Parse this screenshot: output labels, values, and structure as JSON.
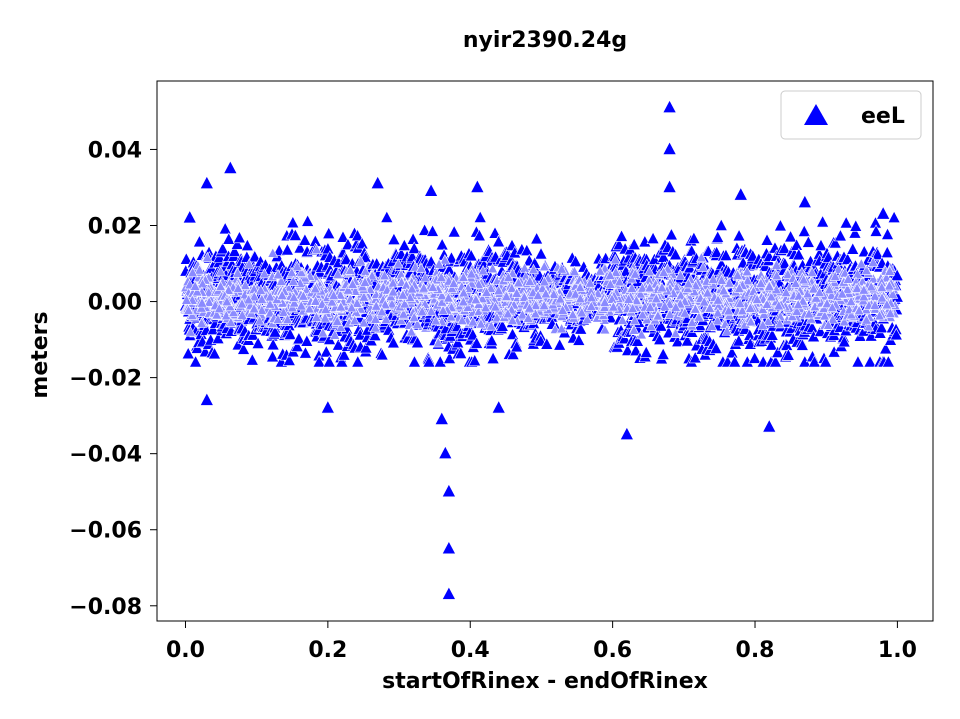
{
  "chart_data": {
    "type": "scatter",
    "title": "nyir2390.24g",
    "xlabel": "startOfRinex - endOfRinex",
    "ylabel": "meters",
    "xlim": [
      -0.04,
      1.05
    ],
    "ylim": [
      -0.084,
      0.058
    ],
    "xticks": [
      0.0,
      0.2,
      0.4,
      0.6,
      0.8,
      1.0
    ],
    "xtick_labels": [
      "0.0",
      "0.2",
      "0.4",
      "0.6",
      "0.8",
      "1.0"
    ],
    "yticks": [
      0.04,
      0.02,
      0.0,
      -0.02,
      -0.04,
      -0.06,
      -0.08
    ],
    "ytick_labels": [
      "0.04",
      "0.02",
      "0.00",
      "−0.02",
      "−0.04",
      "−0.06",
      "−0.08"
    ],
    "marker": "triangle-up",
    "grid": false,
    "legend_position": "top-right",
    "series": [
      {
        "name": "eeL",
        "color": "#0000ff",
        "edge_color": "#ffffff",
        "x_range": [
          0.0,
          1.0
        ],
        "typical_y_range": [
          -0.014,
          0.018
        ],
        "notable_points": [
          {
            "x": 0.006,
            "y": 0.022
          },
          {
            "x": 0.03,
            "y": 0.031
          },
          {
            "x": 0.03,
            "y": -0.026
          },
          {
            "x": 0.063,
            "y": 0.035
          },
          {
            "x": 0.2,
            "y": -0.028
          },
          {
            "x": 0.27,
            "y": 0.031
          },
          {
            "x": 0.345,
            "y": 0.029
          },
          {
            "x": 0.36,
            "y": -0.031
          },
          {
            "x": 0.365,
            "y": -0.04
          },
          {
            "x": 0.37,
            "y": -0.05
          },
          {
            "x": 0.37,
            "y": -0.065
          },
          {
            "x": 0.37,
            "y": -0.077
          },
          {
            "x": 0.41,
            "y": 0.03
          },
          {
            "x": 0.44,
            "y": -0.028
          },
          {
            "x": 0.62,
            "y": -0.035
          },
          {
            "x": 0.68,
            "y": 0.051
          },
          {
            "x": 0.68,
            "y": 0.04
          },
          {
            "x": 0.68,
            "y": 0.03
          },
          {
            "x": 0.78,
            "y": 0.028
          },
          {
            "x": 0.82,
            "y": -0.033
          },
          {
            "x": 0.87,
            "y": 0.026
          },
          {
            "x": 0.98,
            "y": 0.023
          }
        ]
      }
    ]
  }
}
